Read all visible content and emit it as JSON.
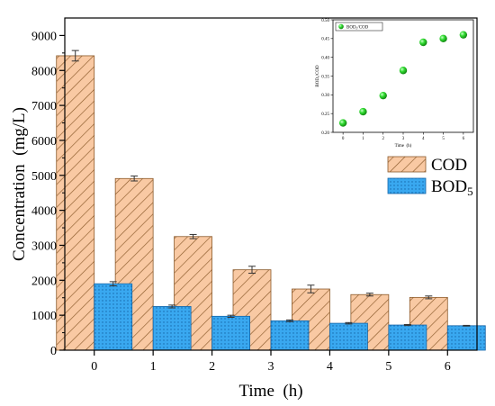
{
  "chart_data": [
    {
      "type": "bar",
      "xlabel": "Time  (h)",
      "ylabel": "Concentration  (mg/L)",
      "ylim": [
        0,
        9500
      ],
      "yticks": [
        0,
        1000,
        2000,
        3000,
        4000,
        5000,
        6000,
        7000,
        8000,
        9000
      ],
      "categories": [
        "0",
        "1",
        "2",
        "3",
        "4",
        "5",
        "6"
      ],
      "series": [
        {
          "name": "COD",
          "values": [
            8420,
            4910,
            3250,
            2300,
            1750,
            1590,
            1510
          ],
          "errors": [
            150,
            70,
            60,
            100,
            110,
            40,
            40
          ],
          "color": "#f9c9a3",
          "edge": "#8b5a2b",
          "pattern": "diagonal-hatch"
        },
        {
          "name": "BOD",
          "name_subscript": "5",
          "values": [
            1900,
            1250,
            970,
            840,
            770,
            720,
            700
          ],
          "errors": [
            60,
            40,
            30,
            25,
            20,
            15,
            10
          ],
          "color": "#39a8f0",
          "edge": "#1565a8",
          "pattern": "dots"
        }
      ],
      "legend_position": "right"
    },
    {
      "type": "scatter",
      "xlabel": "Time  (h)",
      "ylabel": "BOD₅/COD",
      "xticks": [
        "0",
        "1",
        "2",
        "3",
        "4",
        "5",
        "6"
      ],
      "yticks": [
        "0.20",
        "0.25",
        "0.30",
        "0.35",
        "0.40",
        "0.45",
        "0.50"
      ],
      "ylim": [
        0.2,
        0.5
      ],
      "xlim": [
        -0.5,
        6.5
      ],
      "x": [
        0,
        1,
        2,
        3,
        4,
        5,
        6
      ],
      "y": [
        0.225,
        0.255,
        0.298,
        0.365,
        0.44,
        0.45,
        0.46
      ],
      "series_name": "BOD₅/COD",
      "marker_color": "#33dd33",
      "legend_position": "top-left"
    }
  ]
}
